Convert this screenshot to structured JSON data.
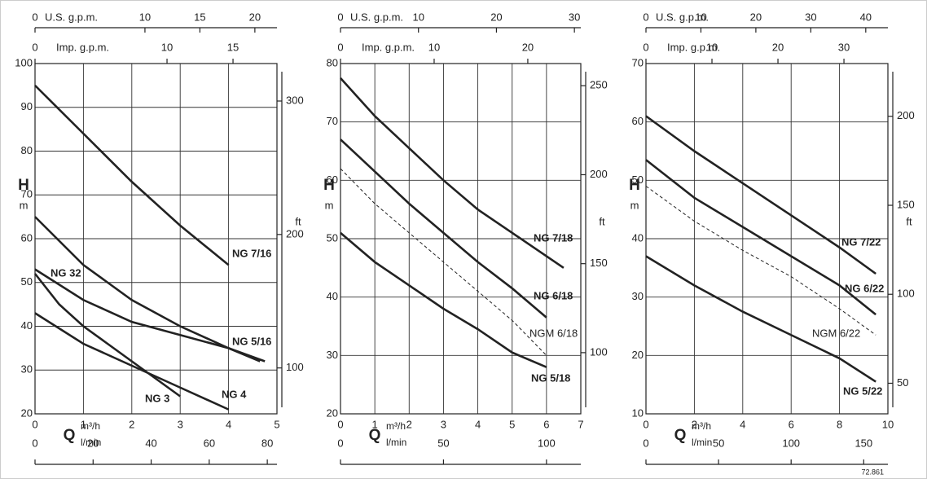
{
  "chart_data": [
    {
      "type": "line",
      "xlabel": "Q",
      "xunit": "m³/h",
      "ylabel": "H",
      "yunit": "m",
      "y2unit": "ft",
      "lmin_label": "l/min",
      "xlim": [
        0,
        5
      ],
      "xticks": [
        0,
        1,
        2,
        3,
        4,
        5
      ],
      "ylim": [
        20,
        100
      ],
      "yticks": [
        20,
        30,
        40,
        50,
        60,
        70,
        80,
        90,
        100
      ],
      "grid": true,
      "us_gpm": {
        "label": "U.S. g.p.m.",
        "lim": [
          0,
          22.01
        ],
        "ticks": [
          0,
          10,
          15,
          20
        ]
      },
      "imp_gpm": {
        "label": "Imp. g.p.m.",
        "lim": [
          0,
          18.33
        ],
        "ticks": [
          0,
          10,
          15
        ]
      },
      "lmin": {
        "lim": [
          0,
          83.33
        ],
        "ticks": [
          0,
          20,
          40,
          60,
          80
        ]
      },
      "ft": {
        "lim": [
          65.62,
          328.08
        ],
        "ticks": [
          100,
          200,
          300
        ]
      },
      "series": [
        {
          "name": "NG 7/16",
          "color": "#222",
          "x": [
            0,
            1,
            2,
            3,
            4
          ],
          "values": [
            95,
            84,
            73,
            63,
            54
          ]
        },
        {
          "name": "NG 5/16",
          "color": "#222",
          "x": [
            0,
            1,
            2,
            3,
            4,
            4.65
          ],
          "values": [
            65,
            54,
            46,
            40,
            35,
            32
          ]
        },
        {
          "name": "NG 32",
          "color": "#222",
          "x": [
            0,
            1,
            2,
            3,
            4,
            4.75
          ],
          "values": [
            53,
            46,
            41,
            38,
            35,
            32
          ]
        },
        {
          "name": "NG 4",
          "color": "#222",
          "x": [
            0,
            1,
            2,
            3,
            4
          ],
          "values": [
            43,
            36,
            31,
            26,
            21
          ]
        },
        {
          "name": "NG 3",
          "color": "#222",
          "x": [
            0,
            0.5,
            1,
            2,
            3
          ],
          "values": [
            52,
            45,
            40,
            32,
            24
          ]
        }
      ]
    },
    {
      "type": "line",
      "xlabel": "Q",
      "xunit": "m³/h",
      "ylabel": "H",
      "yunit": "m",
      "y2unit": "ft",
      "lmin_label": "l/min",
      "xlim": [
        0,
        7
      ],
      "xticks": [
        0,
        1,
        2,
        3,
        4,
        5,
        6,
        7
      ],
      "ylim": [
        20,
        80
      ],
      "yticks": [
        20,
        30,
        40,
        50,
        60,
        70,
        80
      ],
      "grid": true,
      "us_gpm": {
        "label": "U.S. g.p.m.",
        "lim": [
          0,
          30.82
        ],
        "ticks": [
          0,
          10,
          20,
          30
        ]
      },
      "imp_gpm": {
        "label": "Imp. g.p.m.",
        "lim": [
          0,
          25.66
        ],
        "ticks": [
          0,
          10,
          20
        ]
      },
      "lmin": {
        "lim": [
          0,
          116.67
        ],
        "ticks": [
          0,
          50,
          100
        ]
      },
      "ft": {
        "lim": [
          65.62,
          262.47
        ],
        "ticks": [
          100,
          150,
          200,
          250
        ]
      },
      "series": [
        {
          "name": "NG 7/18",
          "color": "#222",
          "x": [
            0,
            1,
            2,
            3,
            4,
            5,
            6.5
          ],
          "values": [
            77.5,
            71,
            65.5,
            60,
            55,
            51,
            45
          ]
        },
        {
          "name": "NG 6/18",
          "color": "#222",
          "x": [
            0,
            1,
            2,
            3,
            4,
            5,
            6
          ],
          "values": [
            67,
            61.5,
            56,
            51,
            46,
            41.5,
            36.5
          ]
        },
        {
          "name": "NGM 6/18",
          "color": "#222",
          "dashed": true,
          "x": [
            0,
            1,
            2,
            3,
            4,
            5,
            6
          ],
          "values": [
            62,
            56,
            51,
            46,
            41,
            36,
            30
          ]
        },
        {
          "name": "NG 5/18",
          "color": "#222",
          "x": [
            0,
            1,
            2,
            3,
            4,
            5,
            6
          ],
          "values": [
            51,
            46,
            42,
            38,
            34.5,
            30.5,
            28
          ]
        }
      ]
    },
    {
      "type": "line",
      "xlabel": "Q",
      "xunit": "m³/h",
      "ylabel": "H",
      "yunit": "m",
      "y2unit": "ft",
      "lmin_label": "l/min",
      "xlim": [
        0,
        10
      ],
      "xticks": [
        0,
        2,
        4,
        6,
        8,
        10
      ],
      "ylim": [
        10,
        70
      ],
      "yticks": [
        10,
        20,
        30,
        40,
        50,
        60,
        70
      ],
      "grid": true,
      "us_gpm": {
        "label": "U.S. g.p.m.",
        "lim": [
          0,
          44.03
        ],
        "ticks": [
          0,
          10,
          20,
          30,
          40
        ]
      },
      "imp_gpm": {
        "label": "Imp. g.p.m.",
        "lim": [
          0,
          36.66
        ],
        "ticks": [
          0,
          10,
          20,
          30
        ]
      },
      "lmin": {
        "lim": [
          0,
          166.67
        ],
        "ticks": [
          0,
          50,
          100,
          150
        ]
      },
      "ft": {
        "lim": [
          32.81,
          229.66
        ],
        "ticks": [
          50,
          100,
          150,
          200
        ]
      },
      "series": [
        {
          "name": "NG 7/22",
          "color": "#222",
          "x": [
            0,
            2,
            4,
            6,
            8,
            9.5
          ],
          "values": [
            61,
            55,
            49.5,
            44,
            38.5,
            34
          ]
        },
        {
          "name": "NG 6/22",
          "color": "#222",
          "x": [
            0,
            2,
            4,
            6,
            8,
            9.5
          ],
          "values": [
            53.5,
            47,
            42,
            37,
            32,
            27
          ]
        },
        {
          "name": "NGM 6/22",
          "color": "#222",
          "dashed": true,
          "x": [
            0,
            2,
            4,
            6,
            8,
            9.5
          ],
          "values": [
            49,
            43,
            38,
            33.5,
            28,
            23.5
          ]
        },
        {
          "name": "NG 5/22",
          "color": "#222",
          "x": [
            0,
            2,
            4,
            6,
            8,
            9.5
          ],
          "values": [
            37,
            32,
            27.5,
            23.5,
            19.5,
            15.5
          ]
        }
      ]
    }
  ],
  "footnote": "72.861"
}
